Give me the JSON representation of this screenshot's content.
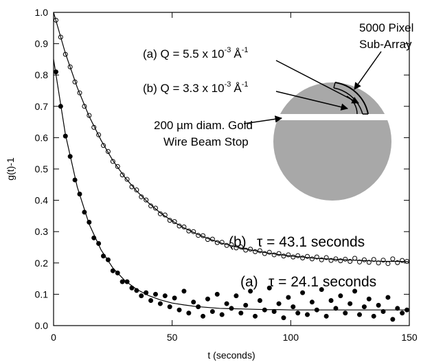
{
  "chart_data": {
    "type": "scatter",
    "xlabel": "t (seconds)",
    "ylabel": "g(t)-1",
    "xlim": [
      0,
      150
    ],
    "ylim": [
      0,
      1
    ],
    "xticks": [
      0,
      50,
      100,
      150
    ],
    "yticks": [
      {
        "value": 0,
        "label": "0.0"
      },
      0.1,
      0.2,
      0.3,
      0.4,
      0.5,
      0.6,
      0.7,
      0.8,
      0.9,
      {
        "value": 1,
        "label": "1.0"
      }
    ],
    "series": [
      {
        "marker": "open",
        "color": "#000000",
        "x": [
          1,
          3,
          5,
          7,
          9,
          11,
          13,
          15,
          17,
          19,
          21,
          23,
          25,
          27,
          29,
          31,
          33,
          35,
          37,
          39,
          41,
          43,
          45,
          47,
          49,
          51,
          53,
          55,
          57,
          59,
          61,
          63,
          65,
          67,
          69,
          71,
          73,
          75,
          77,
          79,
          81,
          83,
          85,
          87,
          89,
          91,
          93,
          95,
          97,
          99,
          101,
          103,
          105,
          107,
          109,
          111,
          113,
          115,
          117,
          119,
          121,
          123,
          125,
          127,
          129,
          131,
          133,
          135,
          137,
          139,
          141,
          143,
          145,
          147,
          149
        ],
        "values": [
          0.975,
          0.921,
          0.866,
          0.826,
          0.778,
          0.743,
          0.7,
          0.671,
          0.633,
          0.609,
          0.575,
          0.556,
          0.524,
          0.508,
          0.481,
          0.467,
          0.443,
          0.433,
          0.411,
          0.401,
          0.382,
          0.375,
          0.357,
          0.353,
          0.336,
          0.332,
          0.318,
          0.315,
          0.302,
          0.3,
          0.288,
          0.287,
          0.275,
          0.276,
          0.265,
          0.266,
          0.256,
          0.258,
          0.248,
          0.251,
          0.241,
          0.244,
          0.236,
          0.239,
          0.23,
          0.234,
          0.226,
          0.23,
          0.222,
          0.226,
          0.219,
          0.223,
          0.216,
          0.221,
          0.213,
          0.219,
          0.21,
          0.217,
          0.208,
          0.213,
          0.207,
          0.212,
          0.205,
          0.215,
          0.203,
          0.21,
          0.202,
          0.211,
          0.2,
          0.209,
          0.198,
          0.213,
          0.201,
          0.208,
          0.205
        ]
      },
      {
        "marker": "filled",
        "color": "#000000",
        "x": [
          1,
          3,
          5,
          7,
          9,
          11,
          13,
          15,
          17,
          19,
          21,
          23,
          25,
          27,
          29,
          31,
          33,
          35,
          37,
          39,
          41,
          43,
          45,
          47,
          49,
          51,
          53,
          55,
          57,
          59,
          61,
          63,
          65,
          67,
          69,
          71,
          73,
          75,
          77,
          79,
          81,
          83,
          85,
          87,
          89,
          91,
          93,
          95,
          97,
          99,
          101,
          103,
          105,
          107,
          109,
          111,
          113,
          115,
          117,
          119,
          121,
          123,
          125,
          127,
          129,
          131,
          133,
          135,
          137,
          139,
          141,
          143,
          145,
          147,
          149
        ],
        "values": [
          0.81,
          0.7,
          0.605,
          0.54,
          0.465,
          0.42,
          0.362,
          0.33,
          0.28,
          0.262,
          0.222,
          0.21,
          0.175,
          0.168,
          0.14,
          0.14,
          0.12,
          0.112,
          0.095,
          0.105,
          0.08,
          0.1,
          0.07,
          0.095,
          0.06,
          0.088,
          0.05,
          0.11,
          0.04,
          0.075,
          0.06,
          0.03,
          0.085,
          0.045,
          0.1,
          0.035,
          0.07,
          0.055,
          0.095,
          0.04,
          0.065,
          0.11,
          0.03,
          0.08,
          0.05,
          0.12,
          0.045,
          0.07,
          0.025,
          0.09,
          0.06,
          0.04,
          0.105,
          0.035,
          0.075,
          0.05,
          0.115,
          0.03,
          0.08,
          0.055,
          0.095,
          0.04,
          0.07,
          0.11,
          0.035,
          0.06,
          0.085,
          0.03,
          0.065,
          0.045,
          0.09,
          0.02,
          0.055,
          0.04,
          0.05
        ]
      },
      {
        "marker": "line",
        "color": "#000000",
        "x": [
          0,
          5,
          10,
          15,
          20,
          25,
          30,
          35,
          40,
          45,
          50,
          55,
          60,
          65,
          70,
          75,
          80,
          85,
          90,
          95,
          100,
          105,
          110,
          115,
          120,
          125,
          130,
          135,
          140,
          145,
          150
        ],
        "values": [
          1.0,
          0.869,
          0.76,
          0.668,
          0.592,
          0.527,
          0.474,
          0.43,
          0.392,
          0.36,
          0.334,
          0.312,
          0.294,
          0.278,
          0.265,
          0.255,
          0.246,
          0.239,
          0.232,
          0.227,
          0.222,
          0.219,
          0.215,
          0.213,
          0.211,
          0.209,
          0.208,
          0.206,
          0.205,
          0.205,
          0.204
        ]
      },
      {
        "marker": "line",
        "color": "#000000",
        "x": [
          0,
          5,
          10,
          15,
          20,
          25,
          30,
          35,
          40,
          45,
          50,
          55,
          60,
          65,
          70,
          75,
          80,
          85,
          90,
          95,
          100,
          105,
          110,
          115,
          120,
          125,
          130,
          135,
          140,
          145,
          150
        ],
        "values": [
          0.85,
          0.61,
          0.442,
          0.324,
          0.242,
          0.184,
          0.144,
          0.116,
          0.096,
          0.082,
          0.072,
          0.066,
          0.061,
          0.058,
          0.055,
          0.054,
          0.053,
          0.052,
          0.051,
          0.051,
          0.05,
          0.05,
          0.05,
          0.05,
          0.05,
          0.05,
          0.05,
          0.05,
          0.05,
          0.05,
          0.05
        ]
      }
    ],
    "annotations": [
      {
        "tag": "(b)",
        "text": "τ = 43.1 seconds"
      },
      {
        "tag": "(a)",
        "text": "τ = 24.1 seconds"
      }
    ],
    "inset": {
      "subarray": [
        "5000 Pixel",
        "Sub-Array"
      ],
      "q_a": {
        "text": "(a) Q = 5.5 x 10",
        "exp": "-3",
        "unit": "Å",
        "unit_exp": "-1"
      },
      "q_b": {
        "text": "(b) Q = 3.3 x 10",
        "exp": "-3",
        "unit": "Å",
        "unit_exp": "-1"
      },
      "beamstop": [
        "200 µm diam. Gold",
        "Wire Beam Stop"
      ]
    }
  }
}
